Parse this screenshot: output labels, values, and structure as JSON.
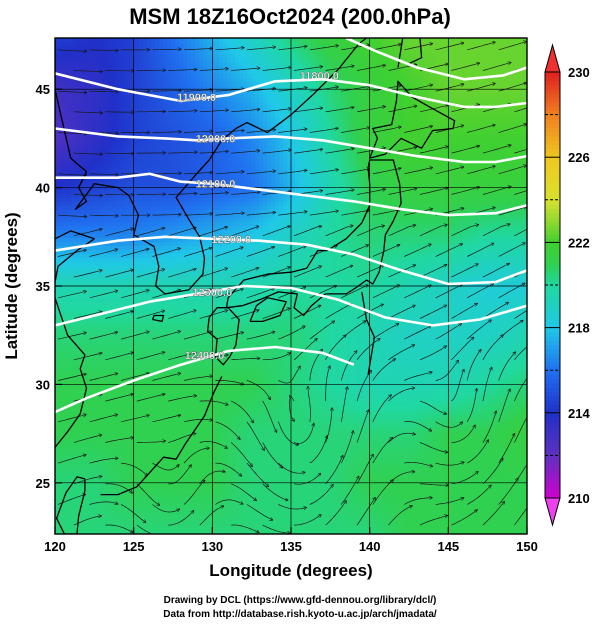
{
  "chart_data": {
    "type": "heatmap",
    "title": "MSM 18Z16Oct2024 (200.0hPa)",
    "xlabel": "Longitude (degrees)",
    "ylabel": "Latitude  (degrees)",
    "xlim": [
      120,
      150
    ],
    "ylim": [
      22.4,
      47.6
    ],
    "x_ticks": [
      "120",
      "125",
      "130",
      "135",
      "140",
      "145",
      "150"
    ],
    "y_ticks": [
      "25",
      "30",
      "35",
      "40",
      "45"
    ],
    "x_tick_values": [
      120,
      125,
      130,
      135,
      140,
      145,
      150
    ],
    "y_tick_values": [
      25,
      30,
      35,
      40,
      45
    ],
    "grid": true,
    "colorbar": {
      "min": 210,
      "max": 230,
      "tick_values": [
        210,
        214,
        218,
        222,
        226,
        230
      ],
      "tick_labels": [
        "210",
        "214",
        "218",
        "222",
        "226",
        "230"
      ],
      "minor_values": [
        212,
        216,
        220,
        224,
        228
      ],
      "placement": "right"
    },
    "colormap": [
      [
        210,
        "#d000d0"
      ],
      [
        212,
        "#6030c0"
      ],
      [
        214,
        "#2030c8"
      ],
      [
        216,
        "#2070f0"
      ],
      [
        218,
        "#20c8e8"
      ],
      [
        220,
        "#20d8a0"
      ],
      [
        221,
        "#30d050"
      ],
      [
        222,
        "#40d030"
      ],
      [
        223,
        "#90d830"
      ],
      [
        224,
        "#d8e030"
      ],
      [
        226,
        "#f0c820"
      ],
      [
        228,
        "#f08020"
      ],
      [
        230,
        "#e02020"
      ]
    ],
    "temperature_field_K": [
      {
        "lat": 47.6,
        "values": [
          214.5,
          214.0,
          214.5,
          216.0,
          217.5,
          219.0,
          220.5,
          221.5,
          222.0,
          222.5,
          222.5,
          222.5,
          222.5
        ]
      },
      {
        "lat": 45.0,
        "values": [
          213.0,
          213.5,
          214.5,
          215.5,
          216.5,
          217.5,
          219.0,
          220.5,
          221.5,
          222.0,
          222.5,
          222.5,
          222.5
        ]
      },
      {
        "lat": 42.5,
        "values": [
          212.5,
          213.5,
          214.5,
          215.0,
          215.5,
          216.5,
          218.0,
          220.0,
          221.5,
          222.0,
          222.0,
          222.0,
          222.0
        ]
      },
      {
        "lat": 40.0,
        "values": [
          214.0,
          214.5,
          215.0,
          215.0,
          215.5,
          216.0,
          217.5,
          219.5,
          221.0,
          221.5,
          221.5,
          221.5,
          221.5
        ]
      },
      {
        "lat": 37.5,
        "values": [
          216.5,
          216.5,
          216.5,
          217.0,
          217.5,
          218.0,
          219.0,
          220.0,
          220.5,
          220.5,
          220.5,
          220.0,
          220.0
        ]
      },
      {
        "lat": 35.0,
        "values": [
          219.5,
          219.5,
          219.5,
          219.5,
          219.5,
          219.5,
          220.0,
          220.0,
          220.0,
          219.5,
          219.0,
          218.5,
          218.5
        ]
      },
      {
        "lat": 32.5,
        "values": [
          220.5,
          220.5,
          220.5,
          220.5,
          220.5,
          220.5,
          220.5,
          220.0,
          219.5,
          219.0,
          219.0,
          219.0,
          219.5
        ]
      },
      {
        "lat": 30.0,
        "values": [
          221.0,
          221.0,
          221.0,
          221.0,
          221.0,
          221.0,
          220.5,
          220.0,
          219.5,
          219.5,
          219.5,
          220.0,
          220.5
        ]
      },
      {
        "lat": 27.5,
        "values": [
          221.0,
          221.0,
          221.0,
          221.0,
          221.0,
          220.5,
          220.5,
          220.5,
          220.5,
          220.5,
          221.0,
          221.0,
          221.5
        ]
      },
      {
        "lat": 25.0,
        "values": [
          220.5,
          220.5,
          221.0,
          221.0,
          221.0,
          220.5,
          220.5,
          220.5,
          221.0,
          221.0,
          221.0,
          221.0,
          221.0
        ]
      },
      {
        "lat": 22.4,
        "values": [
          220.5,
          220.5,
          220.5,
          220.5,
          220.5,
          220.5,
          220.5,
          220.5,
          220.5,
          221.0,
          221.0,
          221.0,
          221.0
        ]
      }
    ],
    "field_lon": [
      120,
      122.5,
      125,
      127.5,
      130,
      132.5,
      135,
      137.5,
      140,
      142.5,
      145,
      147.5,
      150
    ],
    "height_contours_m": [
      {
        "label": "11800.0",
        "label_lon": 136.8,
        "label_lat": 45.7,
        "points": [
          [
            138.5,
            47.6
          ],
          [
            140.5,
            46.9
          ],
          [
            143,
            46.1
          ],
          [
            146,
            45.5
          ],
          [
            148.5,
            45.7
          ],
          [
            150,
            46.1
          ]
        ]
      },
      {
        "label": "11900.0",
        "label_lon": 129.0,
        "label_lat": 44.6,
        "points": [
          [
            120,
            45.8
          ],
          [
            124,
            45.0
          ],
          [
            128,
            44.4
          ],
          [
            131,
            44.7
          ],
          [
            134,
            45.4
          ],
          [
            137,
            45.5
          ],
          [
            140,
            45.2
          ],
          [
            143,
            44.6
          ],
          [
            146,
            44.1
          ],
          [
            148,
            44.1
          ],
          [
            150,
            44.3
          ]
        ]
      },
      {
        "label": "12000.0",
        "label_lon": 130.2,
        "label_lat": 42.5,
        "points": [
          [
            120,
            43.0
          ],
          [
            124,
            42.6
          ],
          [
            127,
            42.5
          ],
          [
            129,
            42.4
          ],
          [
            131,
            42.5
          ],
          [
            134,
            42.6
          ],
          [
            137,
            42.4
          ],
          [
            140,
            42.0
          ],
          [
            143,
            41.6
          ],
          [
            146,
            41.3
          ],
          [
            148,
            41.3
          ],
          [
            150,
            41.6
          ]
        ]
      },
      {
        "label": "12100.0",
        "label_lon": 130.2,
        "label_lat": 40.2,
        "points": [
          [
            120,
            40.5
          ],
          [
            124,
            40.5
          ],
          [
            126,
            40.7
          ],
          [
            128,
            40.3
          ],
          [
            130,
            40.2
          ],
          [
            133,
            39.9
          ],
          [
            136,
            39.6
          ],
          [
            139,
            39.3
          ],
          [
            142,
            38.9
          ],
          [
            145,
            38.6
          ],
          [
            148,
            38.7
          ],
          [
            150,
            39.1
          ]
        ]
      },
      {
        "label": "12200.0",
        "label_lon": 131.2,
        "label_lat": 37.4,
        "points": [
          [
            120,
            36.8
          ],
          [
            124,
            37.3
          ],
          [
            127,
            37.5
          ],
          [
            130,
            37.4
          ],
          [
            133,
            37.3
          ],
          [
            136,
            37.1
          ],
          [
            139,
            36.6
          ],
          [
            142,
            35.8
          ],
          [
            145,
            35.1
          ],
          [
            148,
            35.2
          ],
          [
            150,
            35.8
          ]
        ]
      },
      {
        "label": "12300.0",
        "label_lon": 130.0,
        "label_lat": 34.7,
        "points": [
          [
            120,
            33.0
          ],
          [
            123,
            33.6
          ],
          [
            126,
            34.2
          ],
          [
            129,
            34.6
          ],
          [
            132,
            35.0
          ],
          [
            135,
            34.9
          ],
          [
            138,
            34.3
          ],
          [
            141,
            33.4
          ],
          [
            144,
            33.0
          ],
          [
            147,
            33.3
          ],
          [
            150,
            34.0
          ]
        ]
      },
      {
        "label": "12400.0",
        "label_lon": 129.5,
        "label_lat": 31.5,
        "points": [
          [
            120,
            28.6
          ],
          [
            122,
            29.3
          ],
          [
            125,
            30.2
          ],
          [
            128,
            31.0
          ],
          [
            131,
            31.7
          ],
          [
            134,
            31.9
          ],
          [
            137,
            31.6
          ],
          [
            139,
            31.0
          ]
        ]
      }
    ],
    "credits": [
      "Drawing by DCL (https://www.gfd-dennou.org/library/dcl/)",
      "Data from http://database.rish.kyoto-u.ac.jp/arch/jmadata/"
    ]
  }
}
